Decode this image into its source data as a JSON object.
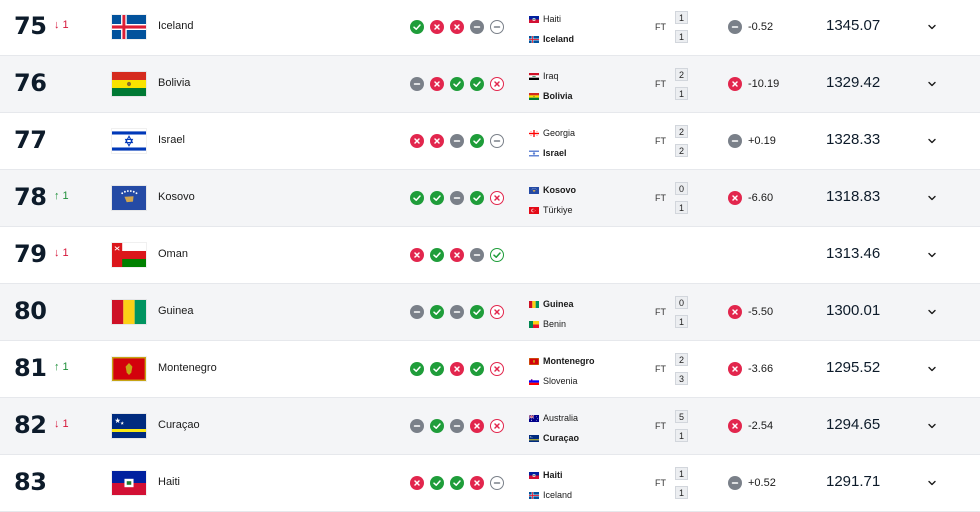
{
  "ft_label": "FT",
  "rows": [
    {
      "rank": "75",
      "move_dir": "down",
      "move_text": "↓ 1",
      "flag": "iceland",
      "country": "Iceland",
      "form": [
        "W",
        "L",
        "L",
        "D"
      ],
      "next": "D",
      "match": {
        "home": "Haiti",
        "home_flag": "haiti",
        "away": "Iceland",
        "away_flag": "iceland",
        "winner": "away",
        "home_score": "1",
        "away_score": "1"
      },
      "delta_type": "D",
      "delta": "-0.52",
      "points": "1345.07"
    },
    {
      "rank": "76",
      "move_dir": "",
      "move_text": "",
      "flag": "bolivia",
      "country": "Bolivia",
      "form": [
        "D",
        "L",
        "W",
        "W"
      ],
      "next": "L",
      "match": {
        "home": "Iraq",
        "home_flag": "iraq",
        "away": "Bolivia",
        "away_flag": "bolivia",
        "winner": "away",
        "home_score": "2",
        "away_score": "1"
      },
      "delta_type": "L",
      "delta": "-10.19",
      "points": "1329.42"
    },
    {
      "rank": "77",
      "move_dir": "",
      "move_text": "",
      "flag": "israel",
      "country": "Israel",
      "form": [
        "L",
        "L",
        "D",
        "W"
      ],
      "next": "D",
      "match": {
        "home": "Georgia",
        "home_flag": "georgia",
        "away": "Israel",
        "away_flag": "israel",
        "winner": "away",
        "home_score": "2",
        "away_score": "2"
      },
      "delta_type": "D",
      "delta": "+0.19",
      "points": "1328.33"
    },
    {
      "rank": "78",
      "move_dir": "up",
      "move_text": "↑ 1",
      "flag": "kosovo",
      "country": "Kosovo",
      "form": [
        "W",
        "W",
        "D",
        "W"
      ],
      "next": "L",
      "match": {
        "home": "Kosovo",
        "home_flag": "kosovo",
        "away": "Türkiye",
        "away_flag": "turkiye",
        "winner": "home",
        "home_score": "0",
        "away_score": "1"
      },
      "delta_type": "L",
      "delta": "-6.60",
      "points": "1318.83"
    },
    {
      "rank": "79",
      "move_dir": "down",
      "move_text": "↓ 1",
      "flag": "oman",
      "country": "Oman",
      "form": [
        "L",
        "W",
        "L",
        "D"
      ],
      "next": "W",
      "match": null,
      "delta_type": "",
      "delta": "",
      "points": "1313.46"
    },
    {
      "rank": "80",
      "move_dir": "",
      "move_text": "",
      "flag": "guinea",
      "country": "Guinea",
      "form": [
        "D",
        "W",
        "D",
        "W"
      ],
      "next": "L",
      "match": {
        "home": "Guinea",
        "home_flag": "guinea",
        "away": "Benin",
        "away_flag": "benin",
        "winner": "home",
        "home_score": "0",
        "away_score": "1"
      },
      "delta_type": "L",
      "delta": "-5.50",
      "points": "1300.01"
    },
    {
      "rank": "81",
      "move_dir": "up",
      "move_text": "↑ 1",
      "flag": "montenegro",
      "country": "Montenegro",
      "form": [
        "W",
        "W",
        "L",
        "W"
      ],
      "next": "L",
      "match": {
        "home": "Montenegro",
        "home_flag": "montenegro",
        "away": "Slovenia",
        "away_flag": "slovenia",
        "winner": "home",
        "home_score": "2",
        "away_score": "3"
      },
      "delta_type": "L",
      "delta": "-3.66",
      "points": "1295.52"
    },
    {
      "rank": "82",
      "move_dir": "down",
      "move_text": "↓ 1",
      "flag": "curacao",
      "country": "Curaçao",
      "form": [
        "D",
        "W",
        "D",
        "L"
      ],
      "next": "L",
      "match": {
        "home": "Australia",
        "home_flag": "australia",
        "away": "Curaçao",
        "away_flag": "curacao",
        "winner": "away",
        "home_score": "5",
        "away_score": "1"
      },
      "delta_type": "L",
      "delta": "-2.54",
      "points": "1294.65"
    },
    {
      "rank": "83",
      "move_dir": "",
      "move_text": "",
      "flag": "haiti",
      "country": "Haiti",
      "form": [
        "L",
        "W",
        "W",
        "L"
      ],
      "next": "D",
      "match": {
        "home": "Haiti",
        "home_flag": "haiti",
        "away": "Iceland",
        "away_flag": "iceland",
        "winner": "home",
        "home_score": "1",
        "away_score": "1"
      },
      "delta_type": "D",
      "delta": "+0.52",
      "points": "1291.71"
    }
  ]
}
